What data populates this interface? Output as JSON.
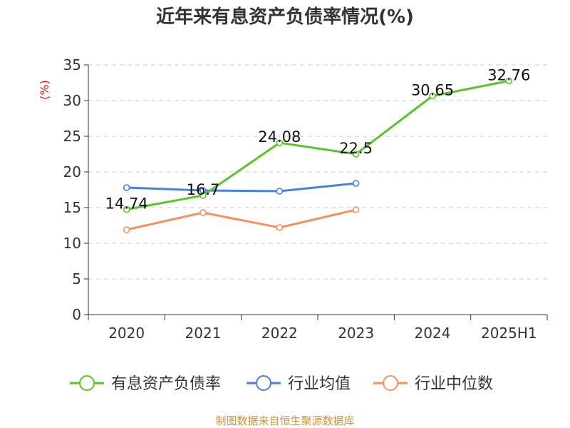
{
  "chart_data": {
    "type": "line",
    "title": "近年来有息资产负债率情况(%)",
    "ylabel": "(%)",
    "xlabel": "",
    "categories": [
      "2020",
      "2021",
      "2022",
      "2023",
      "2024",
      "2025H1"
    ],
    "ylim": [
      0,
      35
    ],
    "yticks": [
      0,
      5,
      10,
      15,
      20,
      25,
      30,
      35
    ],
    "grid": true,
    "legend_position": "bottom",
    "series": [
      {
        "name": "有息资产负债率",
        "color": "#5cc22a",
        "values": [
          14.74,
          16.7,
          24.08,
          22.5,
          30.65,
          32.76
        ],
        "show_labels": true
      },
      {
        "name": "行业均值",
        "color": "#4b7fdb",
        "values": [
          17.8,
          17.4,
          17.3,
          18.4,
          null,
          null
        ],
        "show_labels": false
      },
      {
        "name": "行业中位数",
        "color": "#f4915e",
        "values": [
          11.9,
          14.3,
          12.2,
          14.7,
          null,
          null
        ],
        "show_labels": false
      }
    ],
    "source": "制图数据来自恒生聚源数据库"
  }
}
